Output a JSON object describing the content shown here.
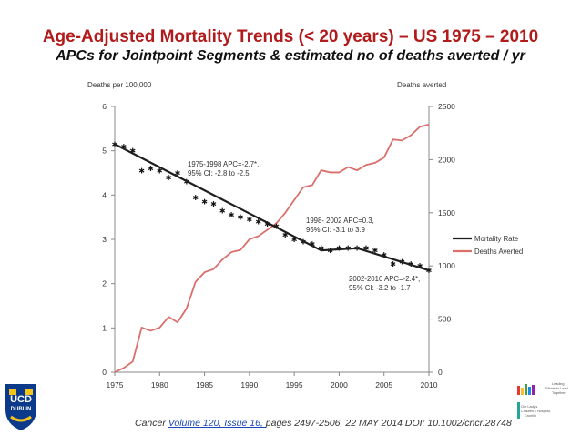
{
  "title": "Age-Adjusted Mortality Trends (< 20 years) – US 1975 – 2010",
  "subtitle": "APCs for Jointpoint Segments & estimated no of deaths averted / yr",
  "citation": {
    "prefix": "Cancer ",
    "link": "Volume 120, Issue 16, ",
    "suffix": "pages 2497-2506, 22 MAY 2014 DOI: 10.1002/cncr.28748"
  },
  "logos": {
    "ucd_line1": "UCD",
    "ucd_line2": "DUBLIN",
    "hospital_lines": [
      "Leading",
      "Efforts to Lead",
      "Together",
      "Our Lady's",
      "Children's Hospital,",
      "Crumlin"
    ]
  },
  "colors": {
    "mortality": "#1e1e1e",
    "deaths_averted": "#d9706c",
    "title": "#b11b1b",
    "axis": "#888888"
  },
  "chart_data": {
    "type": "line",
    "left_axis_label": "Deaths per 100,000",
    "right_axis_label": "Deaths averted",
    "xlim": [
      1975,
      2010
    ],
    "ylim_left": [
      0,
      6
    ],
    "ylim_right": [
      0,
      2500
    ],
    "x_ticks": [
      "1975",
      "1980",
      "1985",
      "1990",
      "1995",
      "2000",
      "2005",
      "2010"
    ],
    "left_ticks": [
      "0",
      "1",
      "2",
      "3",
      "4",
      "5",
      "6"
    ],
    "right_ticks": [
      "0",
      "500",
      "1000",
      "1500",
      "2000",
      "2500"
    ],
    "legend": [
      "Mortality Rate",
      "Deaths Averted"
    ],
    "legend_position": "right",
    "observed_mortality": {
      "name": "",
      "x": [
        1975,
        1976,
        1977,
        1978,
        1979,
        1980,
        1981,
        1982,
        1983,
        1984,
        1985,
        1986,
        1987,
        1988,
        1989,
        1990,
        1991,
        1992,
        1993,
        1994,
        1995,
        1996,
        1997,
        1998,
        1999,
        2000,
        2001,
        2002,
        2003,
        2004,
        2005,
        2006,
        2007,
        2008,
        2009,
        2010
      ],
      "y": [
        5.15,
        5.1,
        5.0,
        4.55,
        4.6,
        4.55,
        4.4,
        4.5,
        4.3,
        3.95,
        3.85,
        3.8,
        3.65,
        3.55,
        3.5,
        3.45,
        3.4,
        3.35,
        3.3,
        3.1,
        3.0,
        2.95,
        2.9,
        2.8,
        2.75,
        2.8,
        2.8,
        2.8,
        2.8,
        2.75,
        2.65,
        2.45,
        2.5,
        2.45,
        2.4,
        2.3
      ]
    },
    "series": [
      {
        "name": "Mortality Rate",
        "x": [
          1975,
          1998,
          2002,
          2010
        ],
        "y": [
          5.15,
          2.75,
          2.8,
          2.3
        ]
      },
      {
        "name": "Deaths Averted",
        "x": [
          1975,
          1976,
          1977,
          1978,
          1979,
          1980,
          1981,
          1982,
          1983,
          1984,
          1985,
          1986,
          1987,
          1988,
          1989,
          1990,
          1991,
          1992,
          1993,
          1994,
          1995,
          1996,
          1997,
          1998,
          1999,
          2000,
          2001,
          2002,
          2003,
          2004,
          2005,
          2006,
          2007,
          2008,
          2009,
          2010
        ],
        "y": [
          0,
          40,
          100,
          420,
          390,
          420,
          520,
          470,
          600,
          850,
          940,
          970,
          1060,
          1130,
          1150,
          1250,
          1280,
          1340,
          1400,
          1500,
          1620,
          1740,
          1760,
          1900,
          1880,
          1880,
          1930,
          1900,
          1950,
          1970,
          2020,
          2190,
          2180,
          2230,
          2310,
          2330
        ]
      }
    ],
    "annotations": [
      {
        "lines": [
          "1975-1998 APC=-2.7*,",
          "95% CI: -2.8 to -2.5"
        ]
      },
      {
        "lines": [
          "1998- 2002 APC=0.3,",
          "95% CI: -3.1 to  3.9"
        ]
      },
      {
        "lines": [
          "2002-2010 APC=-2.4*,",
          "95% CI: -3.2 to -1.7"
        ]
      }
    ]
  }
}
